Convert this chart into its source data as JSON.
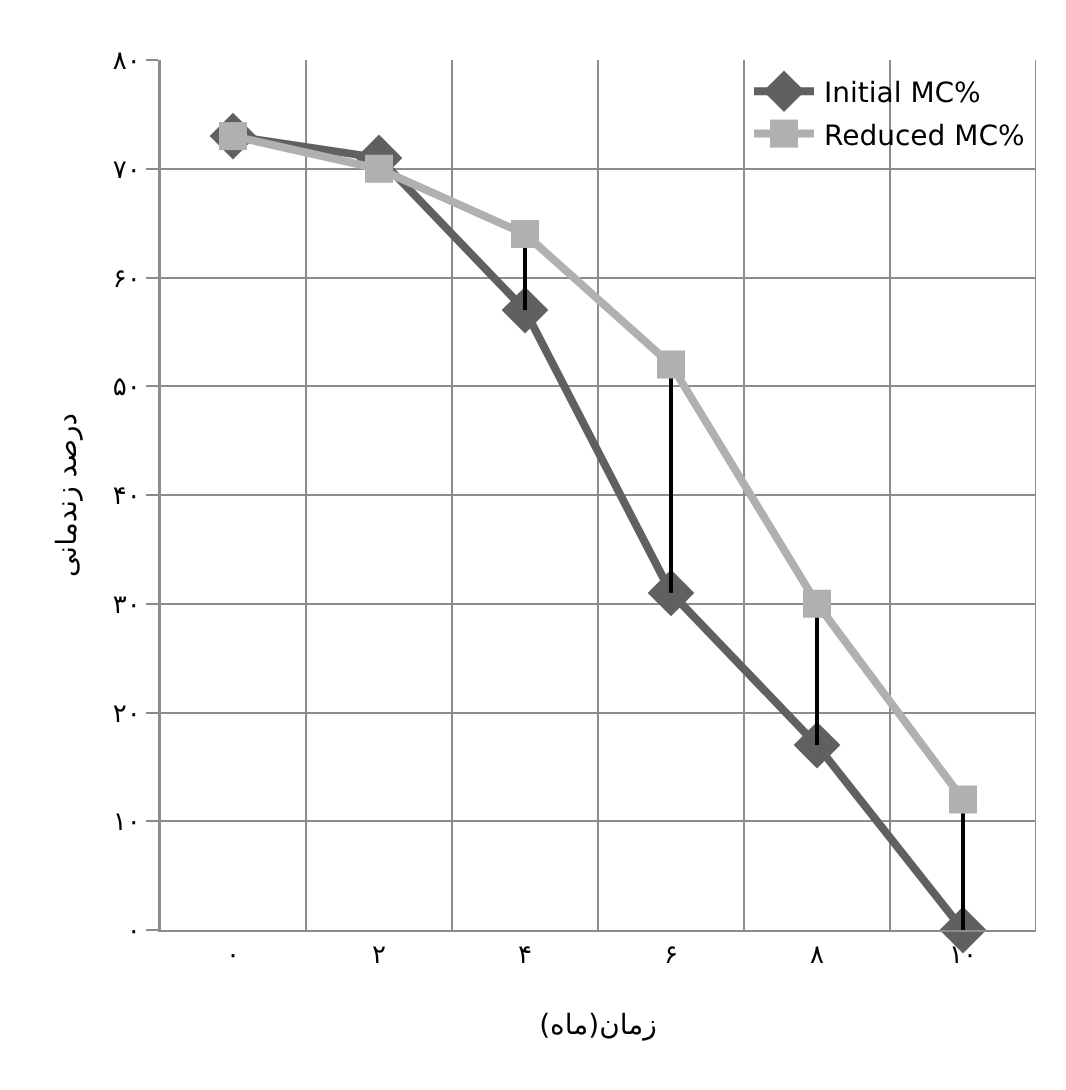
{
  "chart_data": {
    "type": "line",
    "xlabel": "زمان(ماه)",
    "ylabel": "درصد زندمانی",
    "categories": [
      "۰",
      "۲",
      "۴",
      "۶",
      "۸",
      "۱۰"
    ],
    "series": [
      {
        "name": "Initial MC%",
        "color": "#606060",
        "marker": "diamond",
        "values": [
          73,
          71,
          57,
          31,
          17,
          0
        ]
      },
      {
        "name": "Reduced MC%",
        "color": "#b0b0b0",
        "marker": "square",
        "values": [
          73,
          70,
          64,
          52,
          30,
          12
        ],
        "errors": [
          null,
          null,
          [
            57,
            64
          ],
          [
            31,
            52
          ],
          [
            17,
            30
          ],
          [
            0,
            12
          ]
        ]
      }
    ],
    "ylim": [
      0,
      80
    ],
    "yticks": [
      {
        "value": 0,
        "label": "۰"
      },
      {
        "value": 10,
        "label": "۱۰"
      },
      {
        "value": 20,
        "label": "۲۰"
      },
      {
        "value": 30,
        "label": "۳۰"
      },
      {
        "value": 40,
        "label": "۴۰"
      },
      {
        "value": 50,
        "label": "۵۰"
      },
      {
        "value": 60,
        "label": "۶۰"
      },
      {
        "value": 70,
        "label": "۷۰"
      },
      {
        "value": 80,
        "label": "۸۰"
      }
    ],
    "grid": true,
    "legend": "top right"
  }
}
